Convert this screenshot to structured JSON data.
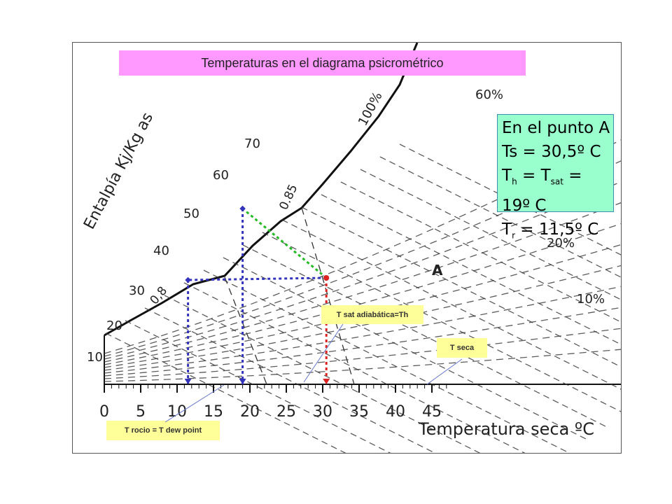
{
  "title": "Temperaturas en el diagrama psicrométrico",
  "point_label": "A",
  "info": {
    "line1": "En el punto A",
    "ts_prefix": "Ts = 30,5º C",
    "th_T": "T",
    "th_sub": "h",
    "th_eq": " = T",
    "th_sat": "sat",
    "th_val": " = 19º C",
    "tr_T": "T",
    "tr_sub": "r",
    "tr_val": " = 11,5º C"
  },
  "labels": {
    "th": "T sat adiabática=Th",
    "ts": "T seca",
    "tr": "T rocio = T dew point"
  },
  "chart_text": {
    "enthalpy_axis": "Entalpía Kj/Kg as",
    "x_axis": "Temperatura seca ºC",
    "x_ticks": [
      "0",
      "5",
      "10",
      "15",
      "20",
      "25",
      "30",
      "35",
      "40",
      "45"
    ],
    "enthalpy_ticks": [
      "10",
      "20",
      "30",
      "40",
      "50",
      "60",
      "70"
    ],
    "volume_ticks": [
      "0,8",
      "0.85"
    ],
    "rh_labels": [
      "100%",
      "60%",
      "20%",
      "10%"
    ]
  },
  "chart_data": {
    "type": "diagram",
    "point_A": {
      "dry_bulb_C": 30.5,
      "wet_bulb_C": 19,
      "dew_point_C": 11.5
    },
    "xlim": [
      0,
      47
    ]
  },
  "colors": {
    "dry_line": "#dd2222",
    "wet_line": "#3333bb",
    "dew_line": "#3333bb",
    "adiabatic_line": "#22bb22"
  }
}
